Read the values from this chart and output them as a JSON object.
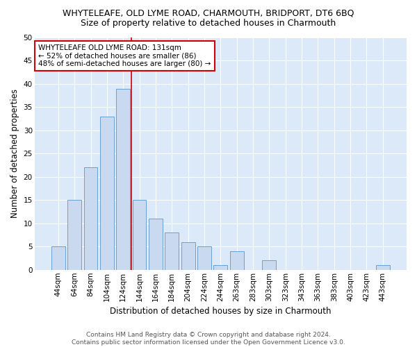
{
  "title": "WHYTELEAFE, OLD LYME ROAD, CHARMOUTH, BRIDPORT, DT6 6BQ",
  "subtitle": "Size of property relative to detached houses in Charmouth",
  "xlabel": "Distribution of detached houses by size in Charmouth",
  "ylabel": "Number of detached properties",
  "categories": [
    "44sqm",
    "64sqm",
    "84sqm",
    "104sqm",
    "124sqm",
    "144sqm",
    "164sqm",
    "184sqm",
    "204sqm",
    "224sqm",
    "244sqm",
    "263sqm",
    "283sqm",
    "303sqm",
    "323sqm",
    "343sqm",
    "363sqm",
    "383sqm",
    "403sqm",
    "423sqm",
    "443sqm"
  ],
  "values": [
    5,
    15,
    22,
    33,
    39,
    15,
    11,
    8,
    6,
    5,
    1,
    4,
    0,
    2,
    0,
    0,
    0,
    0,
    0,
    0,
    1
  ],
  "bar_color": "#c8d9f0",
  "bar_edge_color": "#6aa0d0",
  "ylim": [
    0,
    50
  ],
  "yticks": [
    0,
    5,
    10,
    15,
    20,
    25,
    30,
    35,
    40,
    45,
    50
  ],
  "vline_x_index": 4.5,
  "vline_color": "#cc0000",
  "annotation_box_text": "WHYTELEAFE OLD LYME ROAD: 131sqm\n← 52% of detached houses are smaller (86)\n48% of semi-detached houses are larger (80) →",
  "annotation_box_color": "#cc0000",
  "footer_line1": "Contains HM Land Registry data © Crown copyright and database right 2024.",
  "footer_line2": "Contains public sector information licensed under the Open Government Licence v3.0.",
  "plot_bg_color": "#dce9f8",
  "title_fontsize": 9,
  "subtitle_fontsize": 9,
  "tick_fontsize": 7.5,
  "label_fontsize": 8.5
}
